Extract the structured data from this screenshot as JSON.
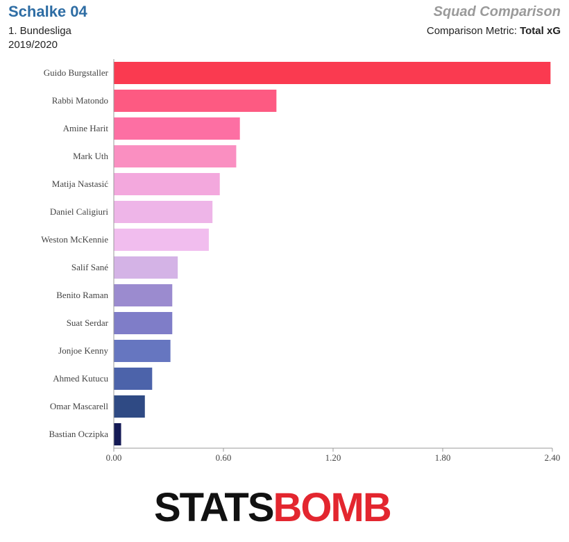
{
  "header": {
    "team": "Schalke 04",
    "competition": "1. Bundesliga",
    "season": "2019/2020",
    "chart_title": "Squad Comparison",
    "metric_label": "Comparison Metric:",
    "metric_value": "Total xG"
  },
  "logo": {
    "part1": "STATS",
    "part2": "BOMB"
  },
  "chart_data": {
    "type": "bar",
    "orientation": "horizontal",
    "categories": [
      "Guido Burgstaller",
      "Rabbi Matondo",
      "Amine Harit",
      "Mark Uth",
      "Matija Nastasić",
      "Daniel Caligiuri",
      "Weston McKennie",
      "Salif Sané",
      "Benito Raman",
      "Suat Serdar",
      "Jonjoe Kenny",
      "Ahmed Kutucu",
      "Omar Mascarell",
      "Bastian Oczipka"
    ],
    "values": [
      2.39,
      0.89,
      0.69,
      0.67,
      0.58,
      0.54,
      0.52,
      0.35,
      0.32,
      0.32,
      0.31,
      0.21,
      0.17,
      0.04
    ],
    "colors": [
      "#fa3a50",
      "#fd5a82",
      "#fd6fa3",
      "#fa8fc1",
      "#f3a8dd",
      "#eeb5e8",
      "#f1bdee",
      "#d4b3e6",
      "#9b8bcf",
      "#7f7dc8",
      "#6676c0",
      "#4c63aa",
      "#2f4a84",
      "#141a55"
    ],
    "xlim": [
      0,
      2.4
    ],
    "xticks": [
      "0.00",
      "0.60",
      "1.20",
      "1.80",
      "2.40"
    ],
    "xtick_values": [
      0,
      0.6,
      1.2,
      1.8,
      2.4
    ]
  }
}
